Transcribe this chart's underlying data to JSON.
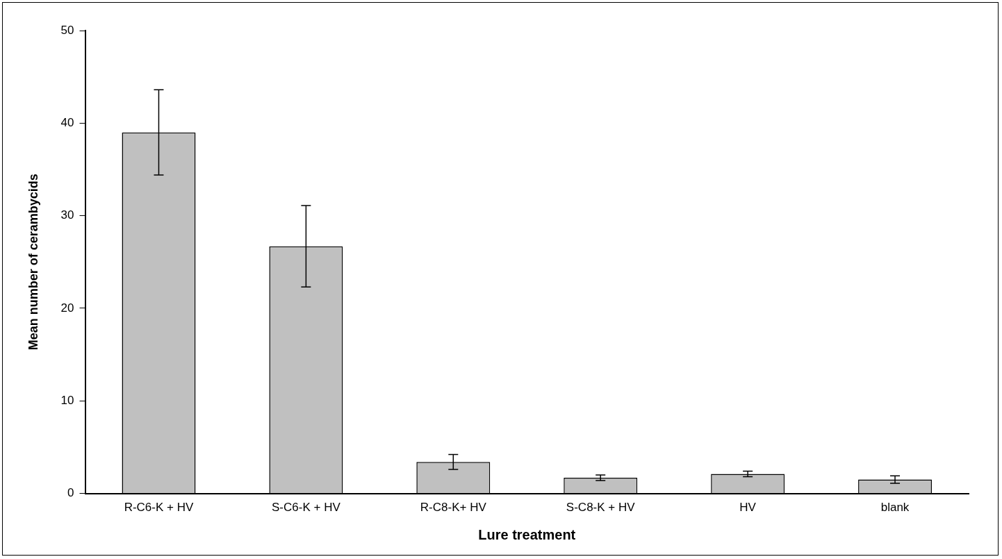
{
  "chart_data": {
    "type": "bar",
    "xlabel": "Lure treatment",
    "ylabel": "Mean number of cerambycids",
    "categories": [
      "R-C6-K + HV",
      "S-C6-K + HV",
      "R-C8-K+ HV",
      "S-C8-K + HV",
      "HV",
      "blank"
    ],
    "values": [
      39,
      26.7,
      3.4,
      1.7,
      2.1,
      1.5
    ],
    "errors": [
      4.6,
      4.4,
      0.8,
      0.3,
      0.3,
      0.4
    ],
    "color": "#c0c0c0",
    "ylim": [
      0,
      50
    ],
    "yticks": [
      0,
      10,
      20,
      30,
      40,
      50
    ],
    "grid": false,
    "legend": false
  }
}
